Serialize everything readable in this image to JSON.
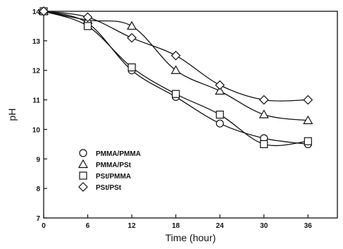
{
  "chart_data": {
    "type": "line",
    "xlabel": "Time (hour)",
    "ylabel": "pH",
    "xlim": [
      0,
      40
    ],
    "ylim": [
      7,
      14
    ],
    "xticks": [
      0,
      6,
      12,
      18,
      24,
      30,
      36
    ],
    "yticks": [
      7,
      8,
      9,
      10,
      11,
      12,
      13,
      14
    ],
    "grid": false,
    "legend_position": "lower-left",
    "x": [
      0,
      6,
      12,
      18,
      24,
      30,
      36
    ],
    "series": [
      {
        "name": "PMMA/PMMA",
        "marker": "circle",
        "values": [
          14.0,
          13.6,
          12.0,
          11.1,
          10.2,
          9.7,
          9.5
        ]
      },
      {
        "name": "PMMA/PSt",
        "marker": "triangle",
        "values": [
          14.0,
          13.7,
          13.5,
          12.0,
          11.3,
          10.5,
          10.3
        ]
      },
      {
        "name": "PSt/PMMA",
        "marker": "square",
        "values": [
          14.0,
          13.5,
          12.1,
          11.2,
          10.5,
          9.5,
          9.6
        ]
      },
      {
        "name": "PSt/PSt",
        "marker": "diamond",
        "values": [
          14.0,
          13.8,
          13.1,
          12.5,
          11.5,
          11.0,
          11.0
        ]
      }
    ]
  }
}
